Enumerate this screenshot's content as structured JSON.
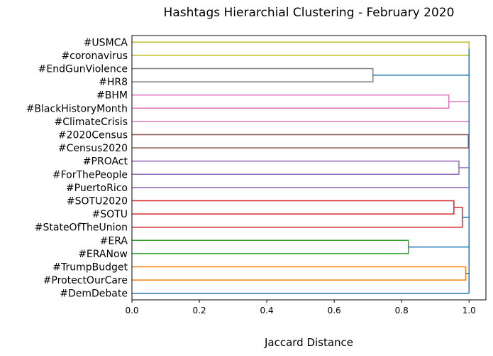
{
  "chart_data": {
    "type": "dendrogram",
    "title": "Hashtags Hierarchial Clustering - February 2020",
    "xlabel": "Jaccard Distance",
    "xlim": [
      0.0,
      1.05
    ],
    "xticks": [
      0.0,
      0.2,
      0.4,
      0.6,
      0.8,
      1.0
    ],
    "xtick_labels": [
      "0.0",
      "0.2",
      "0.4",
      "0.6",
      "0.8",
      "1.0"
    ],
    "grid": false,
    "leaves": [
      "#USMCA",
      "#coronavirus",
      "#EndGunViolence",
      "#HR8",
      "#BHM",
      "#BlackHistoryMonth",
      "#ClimateCrisis",
      "#2020Census",
      "#Census2020",
      "#PROAct",
      "#ForThePeople",
      "#PuertoRico",
      "#SOTU2020",
      "#SOTU",
      "#StateOfTheUnion",
      "#ERA",
      "#ERANow",
      "#TrumpBudget",
      "#ProtectOurCare",
      "#DemDebate"
    ],
    "merges": [
      {
        "a": "#USMCA",
        "b": "#coronavirus",
        "distance": 1.0,
        "color": "#bcbd22"
      },
      {
        "a": "#EndGunViolence",
        "b": "#HR8",
        "distance": 0.715,
        "color": "#7f7f7f"
      },
      {
        "a": "#BHM",
        "b": "#BlackHistoryMonth",
        "distance": 0.94,
        "color": "#e377c2"
      },
      {
        "a": "#BHM+#BlackHistoryMonth",
        "b": "#ClimateCrisis",
        "distance": 1.0,
        "color": "#e377c2"
      },
      {
        "a": "#2020Census",
        "b": "#Census2020",
        "distance": 0.998,
        "color": "#8c564b"
      },
      {
        "a": "#PROAct",
        "b": "#ForThePeople",
        "distance": 0.97,
        "color": "#9467bd"
      },
      {
        "a": "#PROAct+#ForThePeople",
        "b": "#PuertoRico",
        "distance": 1.0,
        "color": "#9467bd"
      },
      {
        "a": "#SOTU2020",
        "b": "#SOTU",
        "distance": 0.955,
        "color": "#d62728"
      },
      {
        "a": "#SOTU2020+#SOTU",
        "b": "#StateOfTheUnion",
        "distance": 0.98,
        "color": "#d62728"
      },
      {
        "a": "#ERA",
        "b": "#ERANow",
        "distance": 0.82,
        "color": "#2ca02c"
      },
      {
        "a": "#TrumpBudget",
        "b": "#ProtectOurCare",
        "distance": 0.99,
        "color": "#ff7f0e"
      },
      {
        "a": "all-clusters",
        "b": "#DemDebate",
        "distance": 1.0,
        "color": "#1f77b4"
      }
    ],
    "link_color_above_threshold": "#1f77b4"
  }
}
